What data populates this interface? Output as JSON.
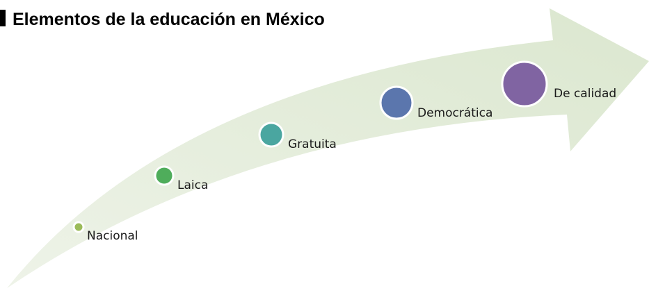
{
  "title": "Elementos de la educación en México",
  "nodes": [
    {
      "label": "Nacional"
    },
    {
      "label": "Laica"
    },
    {
      "label": "Gratuita"
    },
    {
      "label": "Democrática"
    },
    {
      "label": "De calidad"
    }
  ]
}
